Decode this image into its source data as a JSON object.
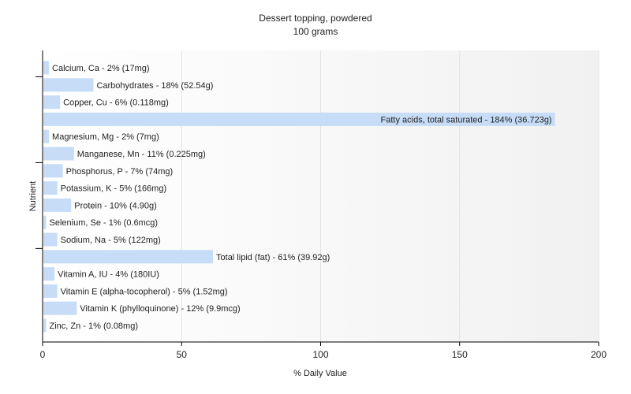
{
  "chart_data": {
    "type": "bar",
    "orientation": "horizontal",
    "title": "Dessert topping, powdered",
    "subtitle": "100 grams",
    "xlabel": "% Daily Value",
    "ylabel": "Nutrient",
    "xlim": [
      0,
      200
    ],
    "xticks": [
      "0",
      "50",
      "100",
      "150",
      "200"
    ],
    "grid": true,
    "bar_color": "#c6dcf7",
    "categories": [
      "Calcium, Ca",
      "Carbohydrates",
      "Copper, Cu",
      "Fatty acids, total saturated",
      "Magnesium, Mg",
      "Manganese, Mn",
      "Phosphorus, P",
      "Potassium, K",
      "Protein",
      "Selenium, Se",
      "Sodium, Na",
      "Total lipid (fat)",
      "Vitamin A, IU",
      "Vitamin E (alpha-tocopherol)",
      "Vitamin K (phylloquinone)",
      "Zinc, Zn"
    ],
    "values": [
      2,
      18,
      6,
      184,
      2,
      11,
      7,
      5,
      10,
      1,
      5,
      61,
      4,
      5,
      12,
      1
    ],
    "labels": [
      "Calcium, Ca - 2% (17mg)",
      "Carbohydrates - 18% (52.54g)",
      "Copper, Cu - 6% (0.118mg)",
      "Fatty acids, total saturated - 184% (36.723g)",
      "Magnesium, Mg - 2% (7mg)",
      "Manganese, Mn - 11% (0.225mg)",
      "Phosphorus, P - 7% (74mg)",
      "Potassium, K - 5% (166mg)",
      "Protein - 10% (4.90g)",
      "Selenium, Se - 1% (0.6mcg)",
      "Sodium, Na - 5% (122mg)",
      "Total lipid (fat) - 61% (39.92g)",
      "Vitamin A, IU - 4% (180IU)",
      "Vitamin E (alpha-tocopherol) - 5% (1.52mg)",
      "Vitamin K (phylloquinone) - 12% (9.9mcg)",
      "Zinc, Zn - 1% (0.08mg)"
    ]
  }
}
